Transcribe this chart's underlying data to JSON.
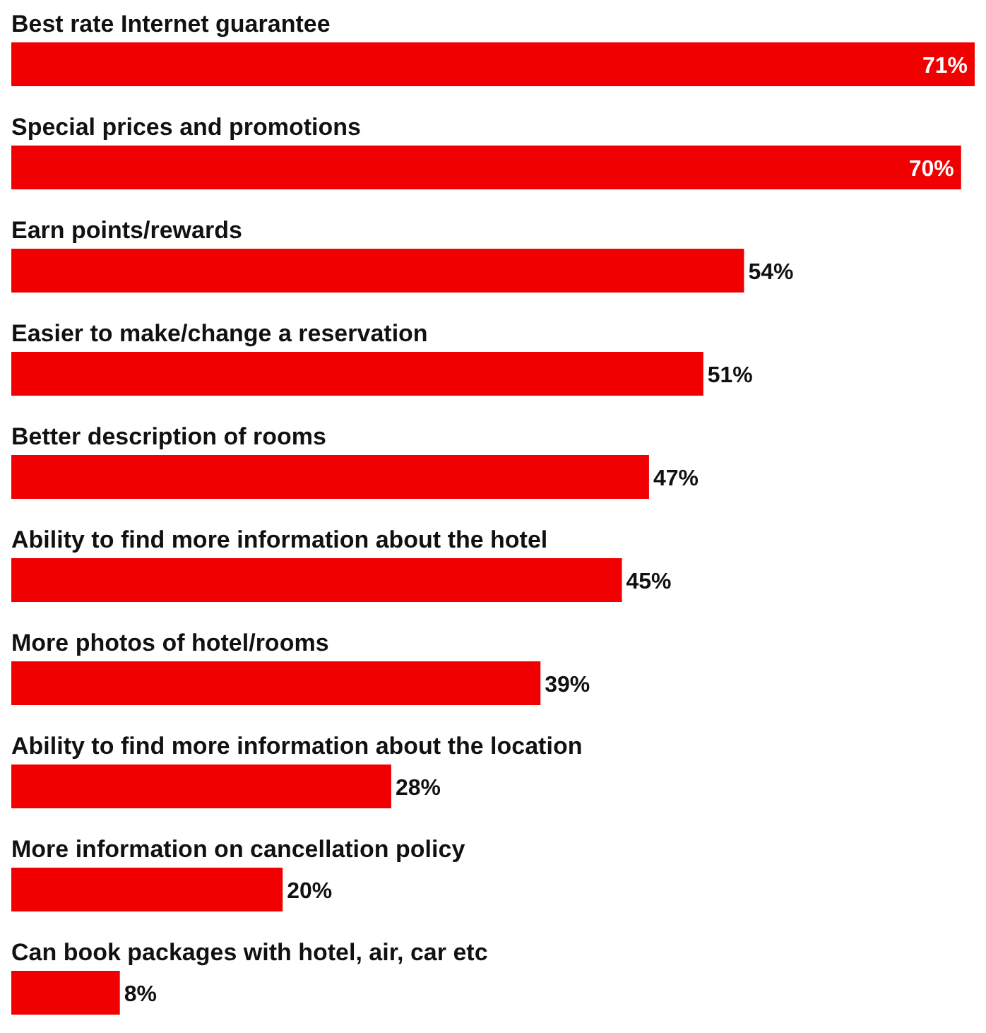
{
  "chart_data": {
    "type": "bar",
    "orientation": "horizontal",
    "tick_labels": false,
    "grid": false,
    "categories": [
      "Best rate Internet guarantee",
      "Special prices and promotions",
      "Earn points/rewards",
      "Easier to make/change a reservation",
      "Better description of rooms",
      "Ability to find more information about the hotel",
      "More photos of hotel/rooms",
      "Ability to find more information about the location",
      "More information on cancellation policy",
      "Can book packages with hotel, air, car etc"
    ],
    "values": [
      71,
      70,
      54,
      51,
      47,
      45,
      39,
      28,
      20,
      8
    ],
    "value_labels": [
      "71%",
      "70%",
      "54%",
      "51%",
      "47%",
      "45%",
      "39%",
      "28%",
      "20%",
      "8%"
    ],
    "color": "#f00000"
  }
}
